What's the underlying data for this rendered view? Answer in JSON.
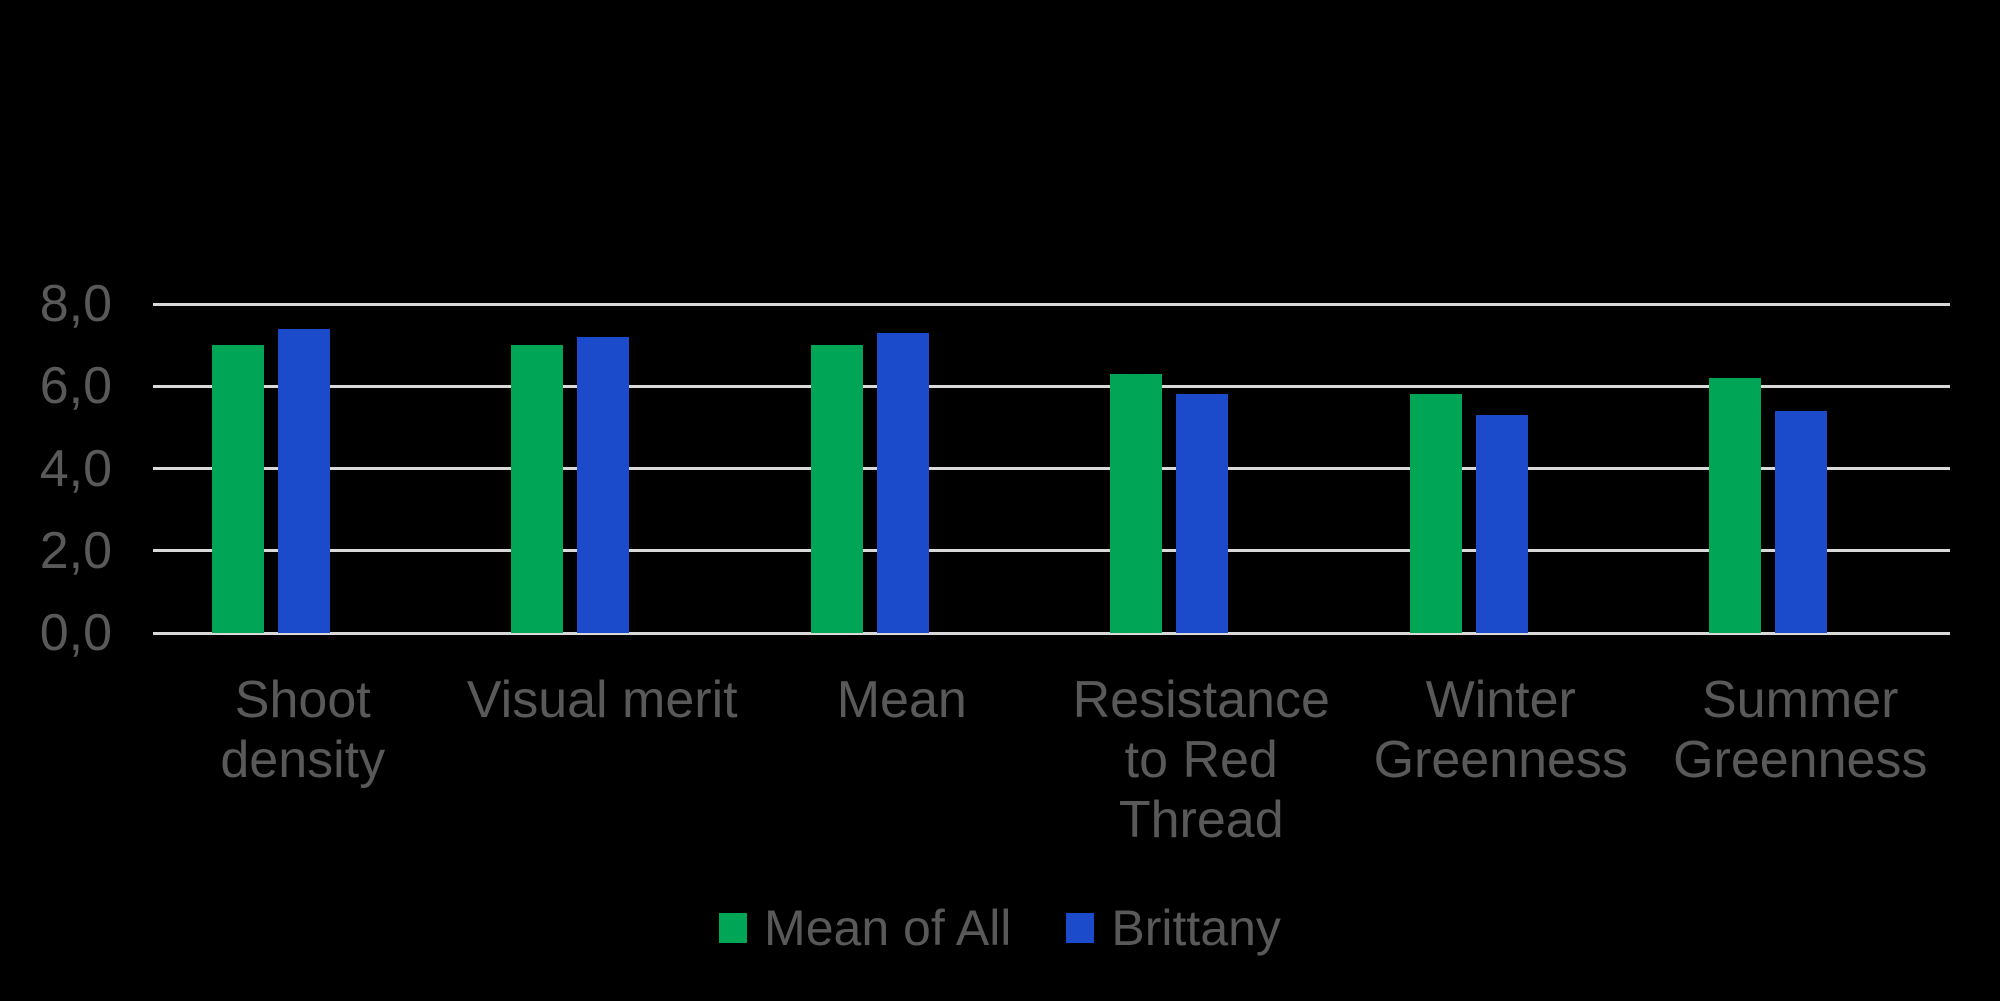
{
  "chart_data": {
    "type": "bar",
    "title": "",
    "categories": [
      "Shoot density",
      "Visual merit",
      "Mean",
      "Resistance to Red Thread",
      "Winter Greenness",
      "Summer Greenness"
    ],
    "category_label_lines": [
      "Shoot\ndensity",
      "Visual merit",
      "Mean",
      "Resistance\nto Red\nThread",
      "Winter\nGreenness",
      "Summer\nGreenness"
    ],
    "series": [
      {
        "name": "Mean of All",
        "color": "#00A555",
        "values": [
          7.0,
          7.0,
          7.0,
          6.3,
          5.8,
          6.2
        ]
      },
      {
        "name": "Brittany",
        "color": "#1B4ACB",
        "values": [
          7.4,
          7.2,
          7.3,
          5.8,
          5.3,
          5.4
        ]
      }
    ],
    "ylim": [
      0,
      8
    ],
    "yticks": [
      0,
      2,
      4,
      6,
      8
    ],
    "ytick_labels": [
      "0,0",
      "2,0",
      "4,0",
      "6,0",
      "8,0"
    ],
    "grid": true,
    "legend_position": "bottom"
  },
  "colors": {
    "background": "#000000",
    "gridline": "#D9D9D9",
    "axis_text": "#595959",
    "green_series": "#00A555",
    "blue_series": "#1B4ACB"
  }
}
